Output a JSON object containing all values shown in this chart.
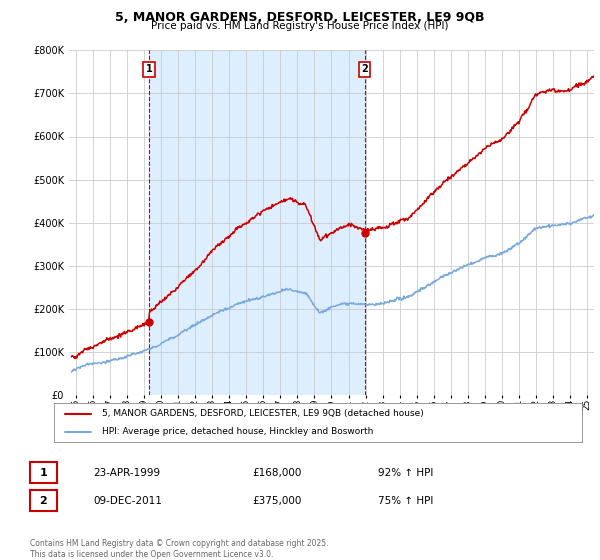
{
  "title_line1": "5, MANOR GARDENS, DESFORD, LEICESTER, LE9 9QB",
  "title_line2": "Price paid vs. HM Land Registry's House Price Index (HPI)",
  "background_color": "#ffffff",
  "plot_bg_color": "#ffffff",
  "shaded_bg_color": "#ddeeff",
  "grid_color": "#cccccc",
  "red_color": "#cc0000",
  "blue_color": "#7aaadd",
  "t1": 1999.31,
  "p1": 168000,
  "t2": 2011.94,
  "p2": 375000,
  "ylim_min": 0,
  "ylim_max": 800000,
  "xlim_min": 1994.6,
  "xlim_max": 2025.4,
  "legend_label1": "5, MANOR GARDENS, DESFORD, LEICESTER, LE9 9QB (detached house)",
  "legend_label2": "HPI: Average price, detached house, Hinckley and Bosworth",
  "note1_date": "23-APR-1999",
  "note1_price": "£168,000",
  "note1_hpi": "92% ↑ HPI",
  "note2_date": "09-DEC-2011",
  "note2_price": "£375,000",
  "note2_hpi": "75% ↑ HPI",
  "footer": "Contains HM Land Registry data © Crown copyright and database right 2025.\nThis data is licensed under the Open Government Licence v3.0."
}
